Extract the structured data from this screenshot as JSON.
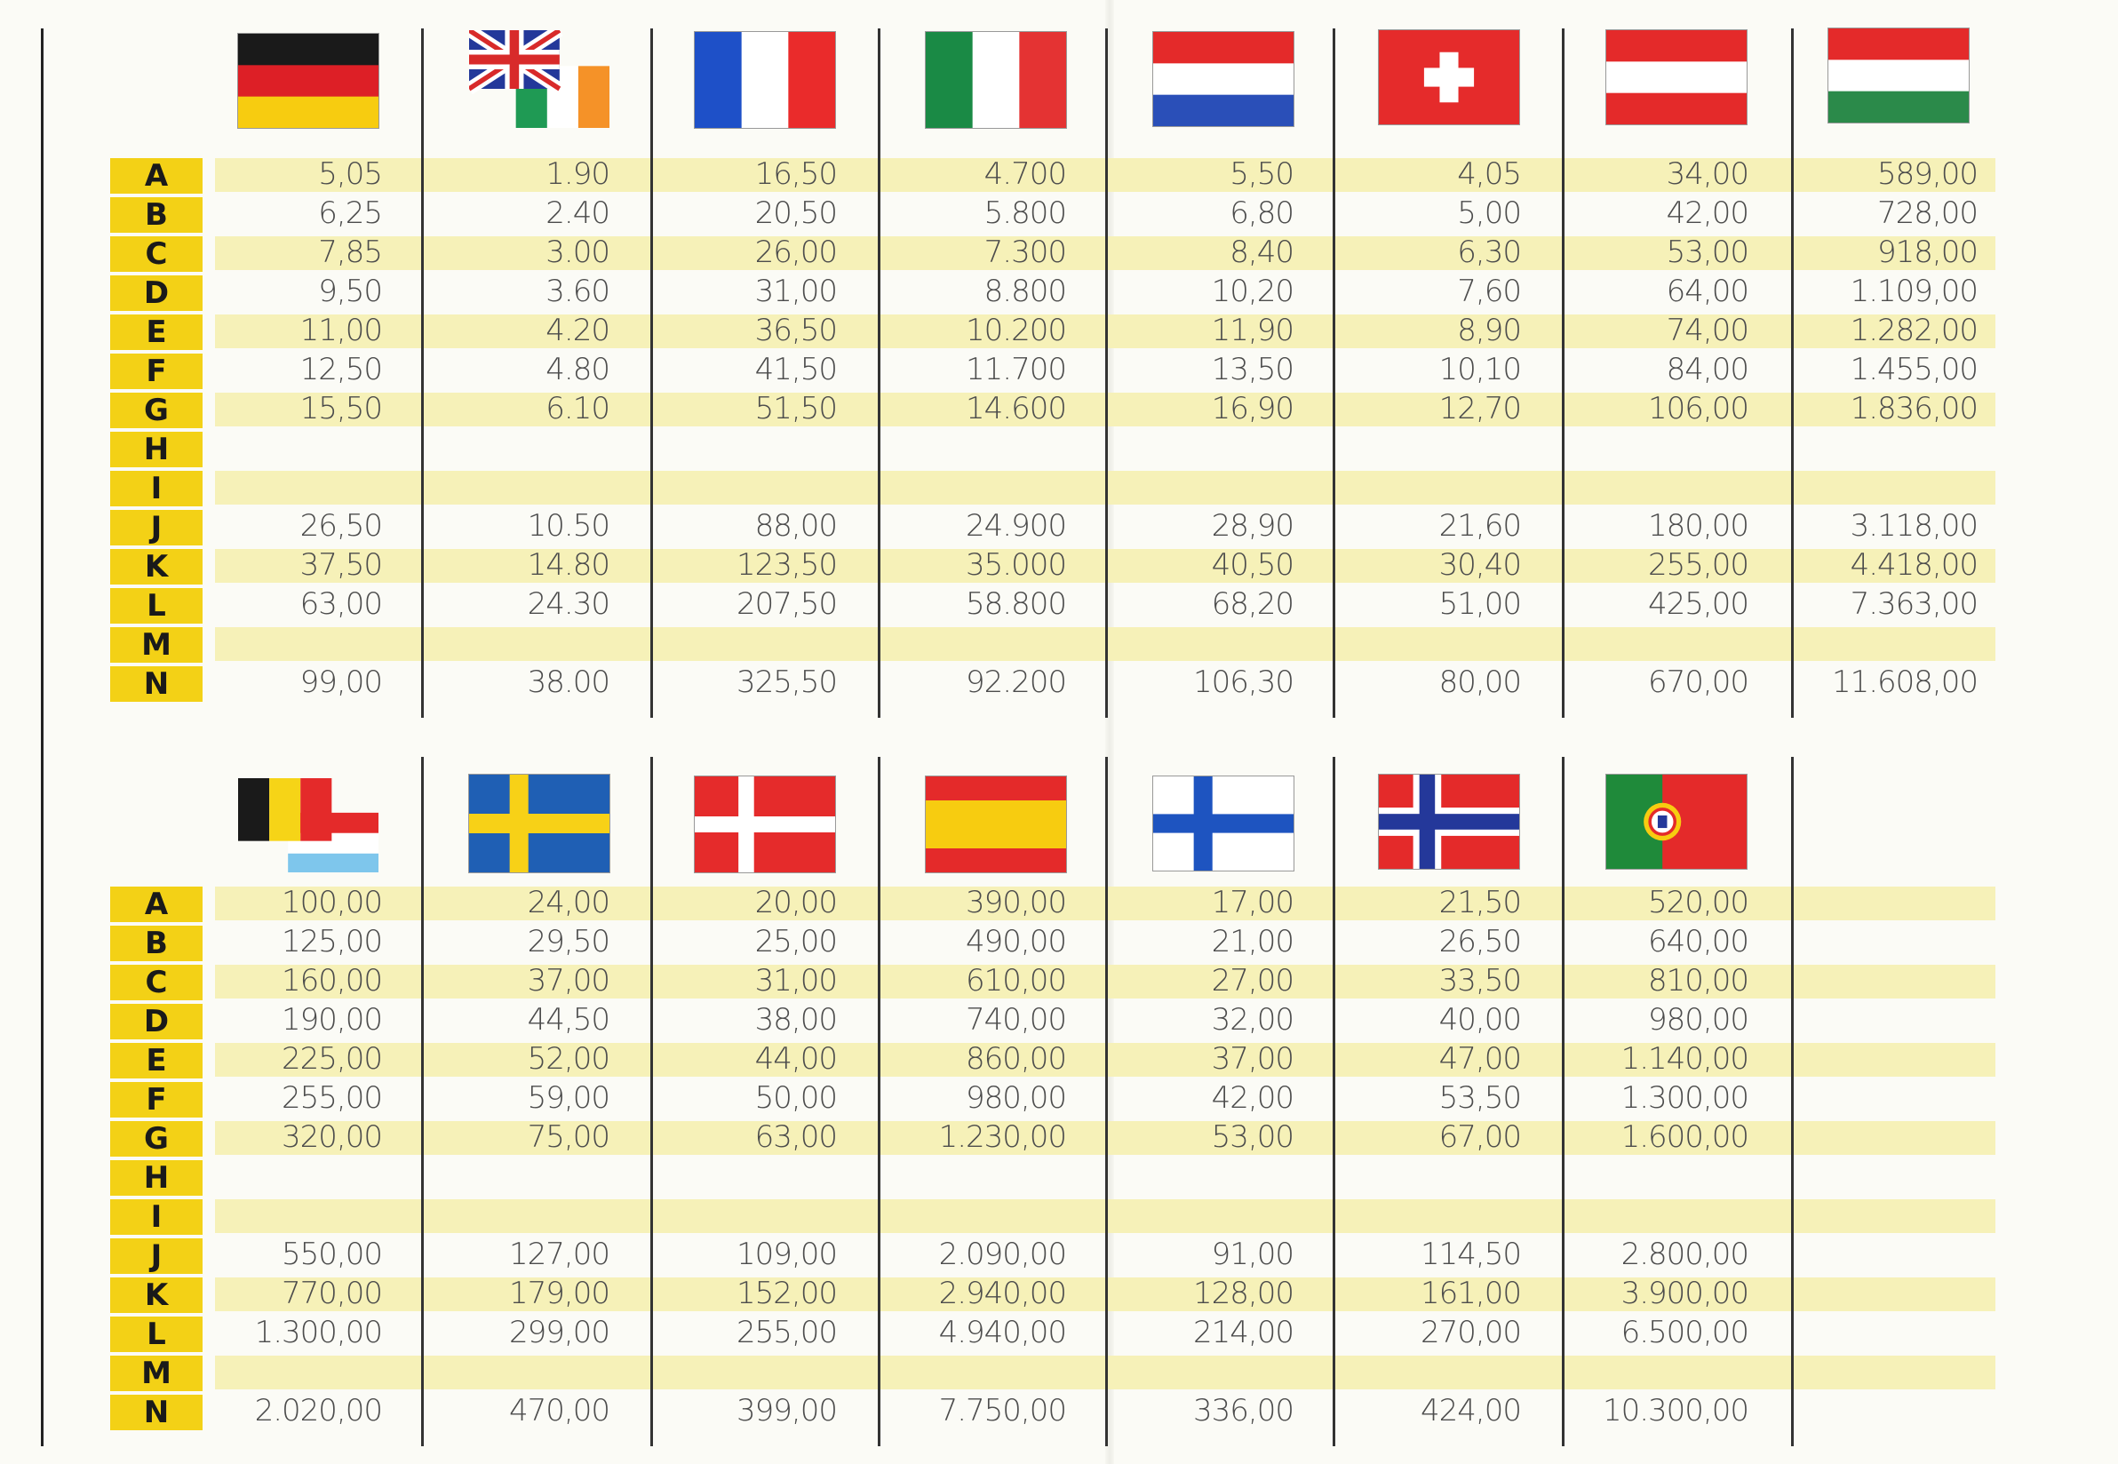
{
  "row_letters": [
    "A",
    "B",
    "C",
    "D",
    "E",
    "F",
    "G",
    "H",
    "I",
    "J",
    "K",
    "L",
    "M",
    "N"
  ],
  "top_table": {
    "flags": [
      {
        "name": "germany-flag"
      },
      {
        "name": "uk-ireland-flag"
      },
      {
        "name": "france-flag"
      },
      {
        "name": "italy-flag"
      },
      {
        "name": "netherlands-flag"
      },
      {
        "name": "switzerland-flag"
      },
      {
        "name": "austria-flag"
      },
      {
        "name": "hungary-flag"
      }
    ],
    "columns": [
      [
        "5,05",
        "6,25",
        "7,85",
        "9,50",
        "11,00",
        "12,50",
        "15,50",
        "",
        "",
        "26,50",
        "37,50",
        "63,00",
        "",
        "99,00"
      ],
      [
        "1.90",
        "2.40",
        "3.00",
        "3.60",
        "4.20",
        "4.80",
        "6.10",
        "",
        "",
        "10.50",
        "14.80",
        "24.30",
        "",
        "38.00"
      ],
      [
        "16,50",
        "20,50",
        "26,00",
        "31,00",
        "36,50",
        "41,50",
        "51,50",
        "",
        "",
        "88,00",
        "123,50",
        "207,50",
        "",
        "325,50"
      ],
      [
        "4.700",
        "5.800",
        "7.300",
        "8.800",
        "10.200",
        "11.700",
        "14.600",
        "",
        "",
        "24.900",
        "35.000",
        "58.800",
        "",
        "92.200"
      ],
      [
        "5,50",
        "6,80",
        "8,40",
        "10,20",
        "11,90",
        "13,50",
        "16,90",
        "",
        "",
        "28,90",
        "40,50",
        "68,20",
        "",
        "106,30"
      ],
      [
        "4,05",
        "5,00",
        "6,30",
        "7,60",
        "8,90",
        "10,10",
        "12,70",
        "",
        "",
        "21,60",
        "30,40",
        "51,00",
        "",
        "80,00"
      ],
      [
        "34,00",
        "42,00",
        "53,00",
        "64,00",
        "74,00",
        "84,00",
        "106,00",
        "",
        "",
        "180,00",
        "255,00",
        "425,00",
        "",
        "670,00"
      ],
      [
        "589,00",
        "728,00",
        "918,00",
        "1.109,00",
        "1.282,00",
        "1.455,00",
        "1.836,00",
        "",
        "",
        "3.118,00",
        "4.418,00",
        "7.363,00",
        "",
        "11.608,00"
      ]
    ]
  },
  "bottom_table": {
    "flags": [
      {
        "name": "belgium-luxembourg-flag"
      },
      {
        "name": "sweden-flag"
      },
      {
        "name": "denmark-flag"
      },
      {
        "name": "spain-flag"
      },
      {
        "name": "finland-flag"
      },
      {
        "name": "norway-flag"
      },
      {
        "name": "portugal-flag"
      }
    ],
    "columns": [
      [
        "100,00",
        "125,00",
        "160,00",
        "190,00",
        "225,00",
        "255,00",
        "320,00",
        "",
        "",
        "550,00",
        "770,00",
        "1.300,00",
        "",
        "2.020,00"
      ],
      [
        "24,00",
        "29,50",
        "37,00",
        "44,50",
        "52,00",
        "59,00",
        "75,00",
        "",
        "",
        "127,00",
        "179,00",
        "299,00",
        "",
        "470,00"
      ],
      [
        "20,00",
        "25,00",
        "31,00",
        "38,00",
        "44,00",
        "50,00",
        "63,00",
        "",
        "",
        "109,00",
        "152,00",
        "255,00",
        "",
        "399,00"
      ],
      [
        "390,00",
        "490,00",
        "610,00",
        "740,00",
        "860,00",
        "980,00",
        "1.230,00",
        "",
        "",
        "2.090,00",
        "2.940,00",
        "4.940,00",
        "",
        "7.750,00"
      ],
      [
        "17,00",
        "21,00",
        "27,00",
        "32,00",
        "37,00",
        "42,00",
        "53,00",
        "",
        "",
        "91,00",
        "128,00",
        "214,00",
        "",
        "336,00"
      ],
      [
        "21,50",
        "26,50",
        "33,50",
        "40,00",
        "47,00",
        "53,50",
        "67,00",
        "",
        "",
        "114,50",
        "161,00",
        "270,00",
        "",
        "424,00"
      ],
      [
        "520,00",
        "640,00",
        "810,00",
        "980,00",
        "1.140,00",
        "1.300,00",
        "1.600,00",
        "",
        "",
        "2.800,00",
        "3.900,00",
        "6.500,00",
        "",
        "10.300,00"
      ]
    ]
  },
  "colors": {
    "row_letter_bg": "#f3d116",
    "stripe": "#f6f1b8",
    "text": "#4c4c4c"
  }
}
